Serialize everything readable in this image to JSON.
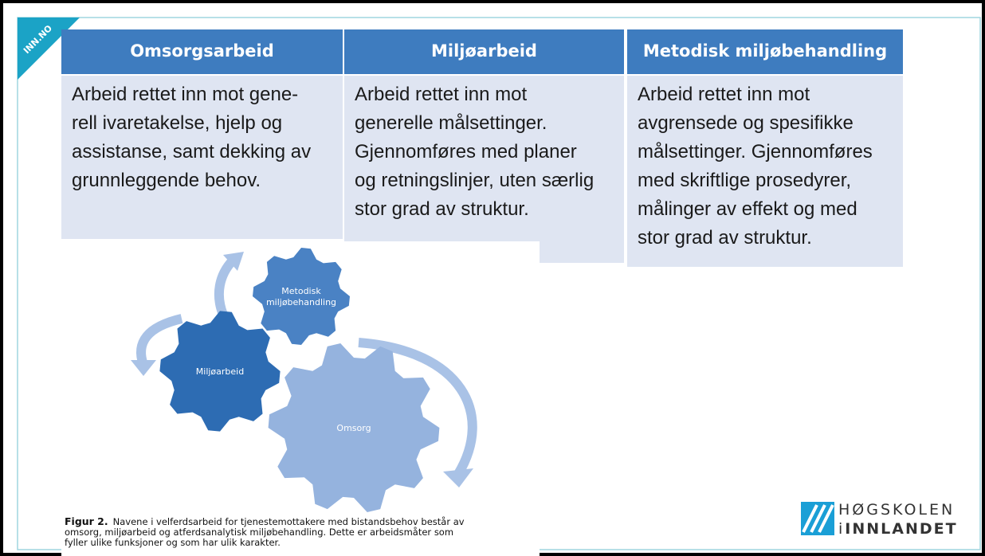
{
  "corner_tag": "INN.NO",
  "columns": [
    {
      "title": "Omsorgsarbeid",
      "lines": [
        "Arbeid rettet inn mot gene-",
        "rell ivaretakelse, hjelp og",
        "assistanse, samt dekking av",
        "grunnleggende behov."
      ]
    },
    {
      "title": "Miljøarbeid",
      "lines": [
        "Arbeid rettet inn mot",
        "generelle målsettinger.",
        "Gjennomføres med planer",
        "og retningslinjer, uten særlig",
        "stor grad av struktur."
      ]
    },
    {
      "title": "Metodisk miljøbehandling",
      "lines": [
        "Arbeid rettet inn mot",
        "avgrensede og spesifikke",
        "målsettinger. Gjennomføres",
        "med skriftlige prosedyrer,",
        "målinger av effekt og med",
        "stor grad av struktur."
      ]
    }
  ],
  "figure": {
    "gears": [
      {
        "lines": [
          "Metodisk",
          "miljøbehandling"
        ]
      },
      {
        "lines": [
          "Miljøarbeid"
        ]
      },
      {
        "lines": [
          "Omsorg"
        ]
      }
    ],
    "caption": {
      "label": "Figur 2.",
      "lines": [
        "Navene i velferdsarbeid for tjenestemottakere med bistandsbehov består av",
        "omsorg, miljøarbeid og atferdsanalytisk miljøbehandling. Dette er arbeidsmåter som",
        "fyller ulike funksjoner og som har ulik karakter."
      ]
    }
  },
  "logo": {
    "line1": "HØGSKOLEN",
    "line2_prefix": "i",
    "line2": "INNLANDET"
  }
}
